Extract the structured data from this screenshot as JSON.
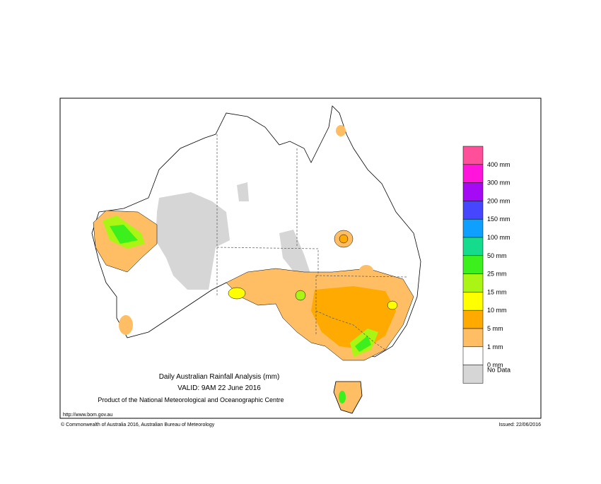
{
  "title": "Daily Australian Rainfall Analysis (mm)",
  "valid": "VALID: 9AM 22 June 2016",
  "product": "Product of the National Meteorological and Oceanographic Centre",
  "url": "http://www.bom.gov.au",
  "copyright": "© Commonwealth of Australia 2016, Australian Bureau of Meteorology",
  "issued": "Issued: 22/06/2016",
  "legend": {
    "top_color": "#ff4f9a",
    "items": [
      {
        "label": "400 mm",
        "color": "#ff14dc"
      },
      {
        "label": "300 mm",
        "color": "#a50af5"
      },
      {
        "label": "200 mm",
        "color": "#4646ff"
      },
      {
        "label": "150 mm",
        "color": "#0fa0ff"
      },
      {
        "label": "100 mm",
        "color": "#14dc8c"
      },
      {
        "label": "50 mm",
        "color": "#3cf01e"
      },
      {
        "label": "25 mm",
        "color": "#aaf514"
      },
      {
        "label": "15 mm",
        "color": "#ffff00"
      },
      {
        "label": "10 mm",
        "color": "#ffaa00"
      },
      {
        "label": "5 mm",
        "color": "#ffbe64"
      },
      {
        "label": "1 mm",
        "color": "#ffffff"
      },
      {
        "label": "0 mm",
        "color": "#d6d6d6"
      }
    ],
    "no_data": "No Data"
  }
}
